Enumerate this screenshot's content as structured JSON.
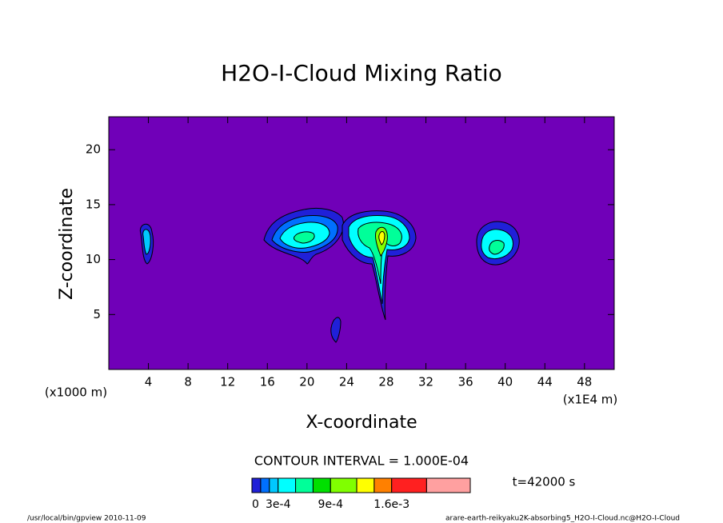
{
  "chart_data": {
    "type": "contour",
    "title": "H2O-I-Cloud Mixing Ratio",
    "x_label": "X-coordinate",
    "y_label": "Z-coordinate",
    "x_unit_left": "(x1000 m)",
    "x_unit_right": "(x1E4 m)",
    "xlim": [
      0,
      51
    ],
    "ylim": [
      0,
      23
    ],
    "xticks": [
      4,
      8,
      12,
      16,
      20,
      24,
      28,
      32,
      36,
      40,
      44,
      48
    ],
    "yticks": [
      5,
      10,
      15,
      20
    ],
    "contour_interval": "CONTOUR INTERVAL = 1.000E-04",
    "time": "t=42000 s",
    "colorbar": {
      "levels": [
        0,
        0.0001,
        0.0002,
        0.0003,
        0.0005,
        0.0007,
        0.0009,
        0.0012,
        0.0014,
        0.0016,
        0.002,
        0.0025
      ],
      "colors": [
        "#7000b8",
        "#2020d8",
        "#0070ff",
        "#00c8ff",
        "#00ffff",
        "#00ff99",
        "#00e000",
        "#80ff00",
        "#ffff00",
        "#ff8000",
        "#ff2020",
        "#ffa0a0"
      ],
      "ticks": [
        {
          "value": 0,
          "label": "0"
        },
        {
          "value": 0.0003,
          "label": "3e-4"
        },
        {
          "value": 0.0009,
          "label": "9e-4"
        },
        {
          "value": 0.0016,
          "label": "1.6e-3"
        }
      ]
    },
    "footer_left": "/usr/local/bin/gpview  2010-11-09",
    "footer_right": "arare-earth-reikyaku2K-absorbing5_H2O-I-Cloud.nc@H2O-I-Cloud"
  }
}
